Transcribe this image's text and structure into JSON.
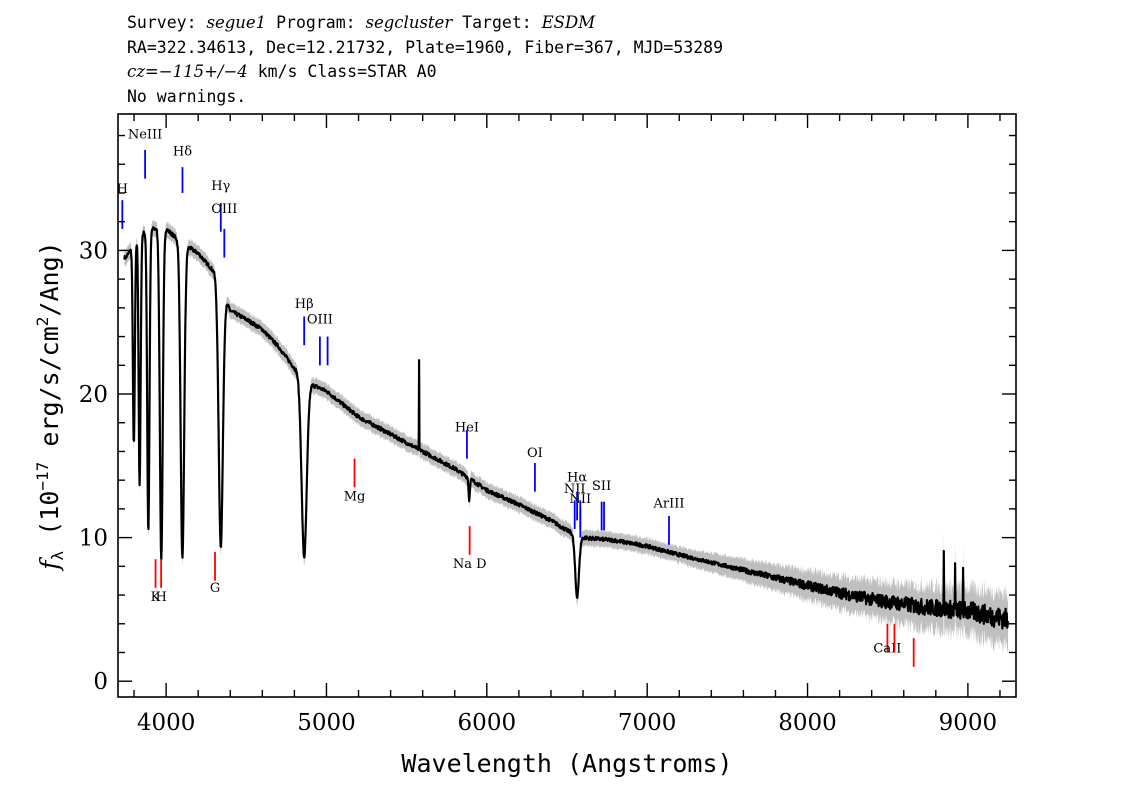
{
  "header": {
    "line1": {
      "survey_label": "Survey: ",
      "survey": "segue1",
      "program_label": " Program: ",
      "program": "segcluster",
      "target_label": " Target: ",
      "target": "ESDM"
    },
    "line2": "RA=322.34613, Dec=12.21732, Plate=1960, Fiber=367, MJD=53289",
    "line3": {
      "cz": "cz=−115+/−4",
      "rest": " km/s Class=STAR A0"
    },
    "line4": "No warnings."
  },
  "chart_data": {
    "type": "line",
    "xlabel": "Wavelength (Angstroms)",
    "ylabel_main": "f",
    "ylabel_sub": "λ",
    "ylabel_rest": " (10",
    "ylabel_exp": "−17",
    "ylabel_tail": " erg/s/cm",
    "ylabel_exp2": "2",
    "ylabel_end": "/Ang)",
    "xlim": [
      3700,
      9300
    ],
    "ylim": [
      -1.1,
      39.5
    ],
    "x_ticks": [
      4000,
      5000,
      6000,
      7000,
      8000,
      9000
    ],
    "x_tick_labels": [
      "4000",
      "5000",
      "6000",
      "7000",
      "8000",
      "9000"
    ],
    "y_ticks": [
      0,
      10,
      20,
      30
    ],
    "y_tick_labels": [
      "0",
      "10",
      "20",
      "30"
    ],
    "x_minor_step": 200,
    "y_minor_step": 2,
    "colors": {
      "flux": "#000000",
      "error": "#bfbfbf",
      "emission": "#0000ff",
      "absorption": "#ff0000"
    },
    "continuum": [
      [
        3750,
        29.5
      ],
      [
        3830,
        31
      ],
      [
        3900,
        31.5
      ],
      [
        4000,
        31.5
      ],
      [
        4100,
        30.5
      ],
      [
        4200,
        29.8
      ],
      [
        4300,
        28.5
      ],
      [
        4400,
        25.8
      ],
      [
        4500,
        25.2
      ],
      [
        4600,
        24.5
      ],
      [
        4700,
        23.3
      ],
      [
        4800,
        21.8
      ],
      [
        4900,
        20.7
      ],
      [
        5000,
        20.2
      ],
      [
        5200,
        18.4
      ],
      [
        5400,
        17.2
      ],
      [
        5600,
        16.0
      ],
      [
        5800,
        14.8
      ],
      [
        6000,
        13.3
      ],
      [
        6200,
        12.3
      ],
      [
        6400,
        11.2
      ],
      [
        6500,
        10.5
      ],
      [
        6600,
        10.0
      ],
      [
        6800,
        9.8
      ],
      [
        7000,
        9.4
      ],
      [
        7200,
        8.8
      ],
      [
        7500,
        8.0
      ],
      [
        7800,
        7.2
      ],
      [
        8100,
        6.4
      ],
      [
        8400,
        5.7
      ],
      [
        8700,
        5.2
      ],
      [
        9000,
        4.9
      ],
      [
        9250,
        4.3
      ]
    ],
    "absorption_features": [
      {
        "center": 3799,
        "depth": 14.0,
        "width": 6
      },
      {
        "center": 3835,
        "depth": 17.5,
        "width": 6
      },
      {
        "center": 3889,
        "depth": 21.0,
        "width": 7
      },
      {
        "center": 3970,
        "depth": 23.0,
        "width": 9
      },
      {
        "center": 4102,
        "depth": 22.0,
        "width": 11
      },
      {
        "center": 4341,
        "depth": 18.0,
        "width": 13
      },
      {
        "center": 4861,
        "depth": 12.5,
        "width": 16
      },
      {
        "center": 6563,
        "depth": 4.3,
        "width": 12
      },
      {
        "center": 5890,
        "depth": 1.5,
        "width": 4
      }
    ],
    "spikes": [
      {
        "x": 5577,
        "peak": 22.3
      },
      {
        "x": 8850,
        "peak": 9.0
      },
      {
        "x": 8920,
        "peak": 8.2
      },
      {
        "x": 8970,
        "peak": 8.0
      }
    ],
    "emission_lines": [
      {
        "label": "NeIII",
        "wavelength": 3869,
        "y_label": 37.8,
        "y_top": 37.0,
        "y_bottom": 35.0
      },
      {
        "label": "Hδ",
        "wavelength": 4102,
        "y_label": 36.6,
        "y_top": 35.8,
        "y_bottom": 34.0
      },
      {
        "label": "Hγ",
        "wavelength": 4341,
        "y_label": 34.2,
        "y_top": 33.3,
        "y_bottom": 31.3
      },
      {
        "label": "OIII",
        "wavelength": 4363,
        "y_label": 32.6,
        "y_top": 31.5,
        "y_bottom": 29.5
      },
      {
        "label": "H",
        "wavelength": 3727,
        "y_label": 34.0,
        "y_top": 33.5,
        "y_bottom": 31.5
      },
      {
        "label": "Hβ",
        "wavelength": 4861,
        "y_label": 26.0,
        "y_top": 25.4,
        "y_bottom": 23.4
      },
      {
        "label": "OIII",
        "wavelength": 4959,
        "y_label": 24.9,
        "y_top": 24.0,
        "y_bottom": 22.0
      },
      {
        "label": "",
        "wavelength": 5007,
        "y_label": 24.9,
        "y_top": 24.0,
        "y_bottom": 22.0
      },
      {
        "label": "HeI",
        "wavelength": 5876,
        "y_label": 17.4,
        "y_top": 17.5,
        "y_bottom": 15.5
      },
      {
        "label": "OI",
        "wavelength": 6300,
        "y_label": 15.6,
        "y_top": 15.2,
        "y_bottom": 13.2
      },
      {
        "label": "NII",
        "wavelength": 6548,
        "y_label": 13.1,
        "y_top": 12.6,
        "y_bottom": 10.6
      },
      {
        "label": "Hα",
        "wavelength": 6563,
        "y_label": 13.9,
        "y_top": 13.2,
        "y_bottom": 11.2
      },
      {
        "label": "",
        "wavelength": 6583,
        "y_label": 13.1,
        "y_top": 12.6,
        "y_bottom": 10.6
      },
      {
        "label": "NII",
        "wavelength": 6583,
        "y_label": 12.4,
        "y_top": 12.0,
        "y_bottom": 10.0
      },
      {
        "label": "SII",
        "wavelength": 6716,
        "y_label": 13.3,
        "y_top": 12.5,
        "y_bottom": 10.5
      },
      {
        "label": "",
        "wavelength": 6731,
        "y_label": 13.3,
        "y_top": 12.5,
        "y_bottom": 10.5
      },
      {
        "label": "ArIII",
        "wavelength": 7136,
        "y_label": 12.1,
        "y_top": 11.5,
        "y_bottom": 9.5
      }
    ],
    "absorption_lines": [
      {
        "label": "K",
        "wavelength": 3934,
        "y_label": 5.6,
        "y_top": 8.5,
        "y_bottom": 6.5
      },
      {
        "label": "H",
        "wavelength": 3969,
        "y_label": 5.6,
        "y_top": 8.5,
        "y_bottom": 6.5
      },
      {
        "label": "G",
        "wavelength": 4305,
        "y_label": 6.2,
        "y_top": 9.0,
        "y_bottom": 7.0
      },
      {
        "label": "Mg",
        "wavelength": 5175,
        "y_label": 12.6,
        "y_top": 15.5,
        "y_bottom": 13.5
      },
      {
        "label": "Na D",
        "wavelength": 5893,
        "y_label": 7.9,
        "y_top": 10.8,
        "y_bottom": 8.8
      },
      {
        "label": "CaII",
        "wavelength": 8498,
        "y_label": 2.0,
        "y_top": 4.0,
        "y_bottom": 2.0
      },
      {
        "label": "",
        "wavelength": 8542,
        "y_label": 2.0,
        "y_top": 4.0,
        "y_bottom": 2.0
      },
      {
        "label": "",
        "wavelength": 8662,
        "y_label": 2.0,
        "y_top": 3.0,
        "y_bottom": 1.0
      }
    ]
  }
}
